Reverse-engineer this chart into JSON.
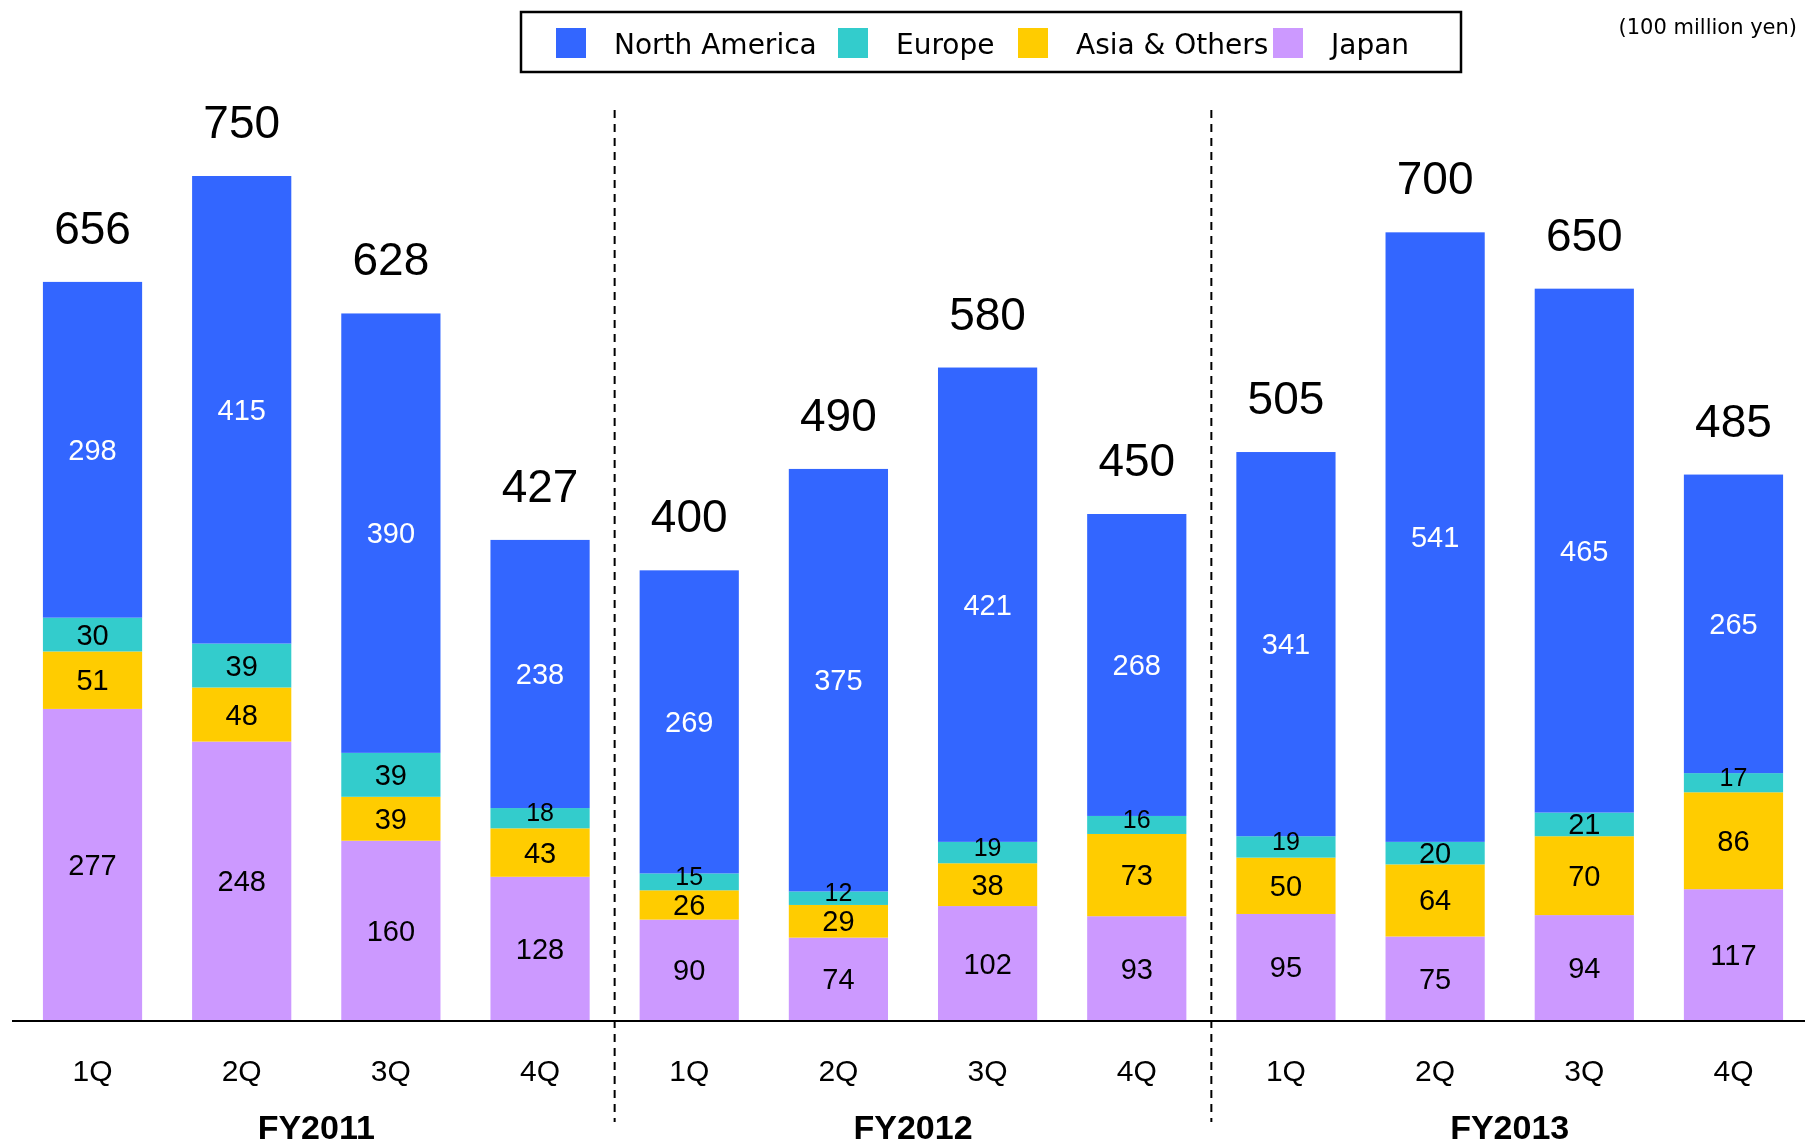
{
  "chart_data": {
    "type": "bar",
    "stacked": true,
    "data_labels": true,
    "legend": "top",
    "categories": [
      "1Q",
      "2Q",
      "3Q",
      "4Q",
      "1Q",
      "2Q",
      "3Q",
      "4Q",
      "1Q",
      "2Q",
      "3Q",
      "4Q"
    ],
    "series": [
      {
        "name": "Japan",
        "color": "#cc99ff",
        "values": [
          277,
          248,
          160,
          128,
          90,
          74,
          102,
          93,
          95,
          75,
          94,
          117
        ]
      },
      {
        "name": "Asia & Others",
        "color": "#ffcc00",
        "values": [
          51,
          48,
          39,
          43,
          26,
          29,
          38,
          73,
          50,
          64,
          70,
          86
        ]
      },
      {
        "name": "Europe",
        "color": "#33cccc",
        "values": [
          30,
          39,
          39,
          18,
          15,
          12,
          19,
          16,
          19,
          20,
          21,
          17
        ]
      },
      {
        "name": "North America",
        "color": "#3366ff",
        "values": [
          298,
          415,
          390,
          238,
          269,
          375,
          421,
          268,
          341,
          541,
          465,
          265
        ]
      }
    ],
    "totals": [
      "656",
      "750",
      "628",
      "427",
      "400",
      "490",
      "580",
      "450",
      "505",
      "700",
      "650",
      "485"
    ],
    "annotations": [
      "FY2011",
      "FY2012",
      "FY2013",
      "(100 million yen)"
    ]
  }
}
